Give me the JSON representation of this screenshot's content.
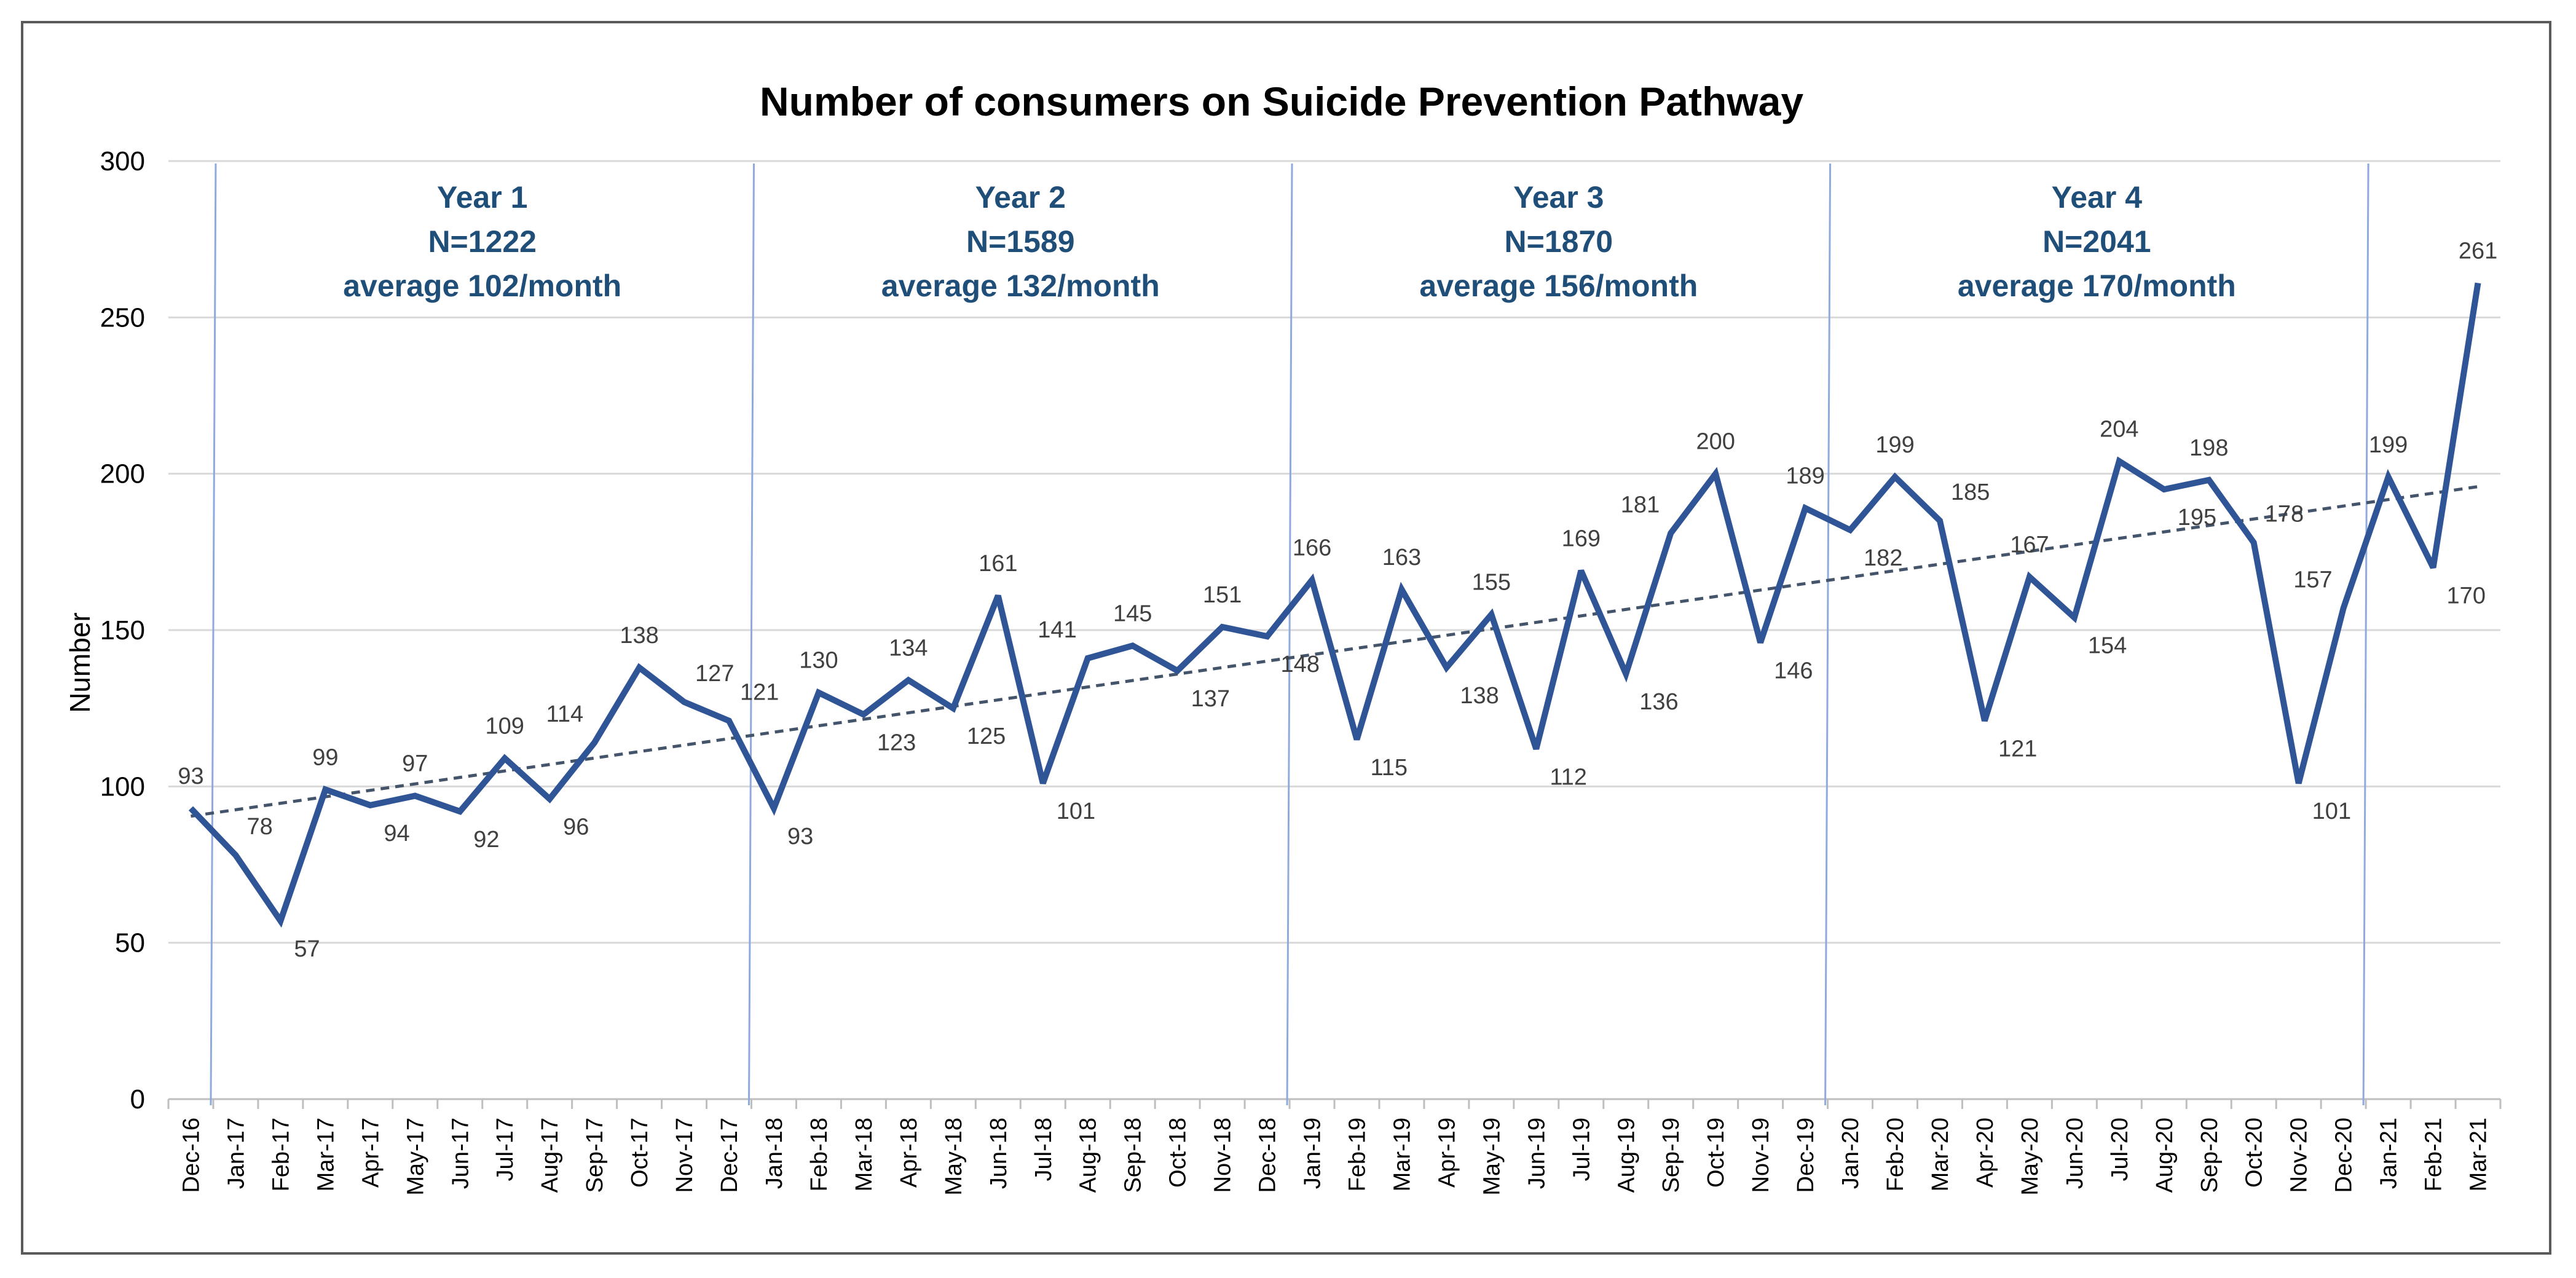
{
  "chart_data": {
    "type": "line",
    "title": "Number of consumers on Suicide Prevention Pathway",
    "xlabel": "",
    "ylabel": "Number",
    "ylim": [
      0,
      300
    ],
    "yticks": [
      "0",
      "50",
      "100",
      "150",
      "200",
      "250",
      "300"
    ],
    "grid": true,
    "categories": [
      "Dec-16",
      "Jan-17",
      "Feb-17",
      "Mar-17",
      "Apr-17",
      "May-17",
      "Jun-17",
      "Jul-17",
      "Aug-17",
      "Sep-17",
      "Oct-17",
      "Nov-17",
      "Dec-17",
      "Jan-18",
      "Feb-18",
      "Mar-18",
      "Apr-18",
      "May-18",
      "Jun-18",
      "Jul-18",
      "Aug-18",
      "Sep-18",
      "Oct-18",
      "Nov-18",
      "Dec-18",
      "Jan-19",
      "Feb-19",
      "Mar-19",
      "Apr-19",
      "May-19",
      "Jun-19",
      "Jul-19",
      "Aug-19",
      "Sep-19",
      "Oct-19",
      "Nov-19",
      "Dec-19",
      "Jan-20",
      "Feb-20",
      "Mar-20",
      "Apr-20",
      "May-20",
      "Jun-20",
      "Jul-20",
      "Aug-20",
      "Sep-20",
      "Oct-20",
      "Nov-20",
      "Dec-20",
      "Jan-21",
      "Feb-21",
      "Mar-21"
    ],
    "series": [
      {
        "name": "Number",
        "color": "#2f5597",
        "values": [
          93,
          78,
          57,
          99,
          94,
          97,
          92,
          109,
          96,
          114,
          138,
          127,
          121,
          93,
          130,
          123,
          134,
          125,
          161,
          101,
          141,
          145,
          137,
          151,
          148,
          166,
          115,
          163,
          138,
          155,
          112,
          169,
          136,
          181,
          200,
          146,
          189,
          182,
          199,
          185,
          121,
          167,
          154,
          204,
          195,
          198,
          178,
          101,
          157,
          199,
          170,
          261
        ],
        "labels": [
          "93",
          "78",
          "57",
          "99",
          "94",
          "97",
          "92",
          "109",
          "96",
          "114",
          "138",
          "127",
          "121",
          "93",
          "130",
          "123",
          "134",
          "125",
          "161",
          "101",
          "141",
          "145",
          "137",
          "151",
          "148",
          "166",
          "115",
          "163",
          "138",
          "155",
          "112",
          "169",
          "136",
          "181",
          "200",
          "146",
          "189",
          "182",
          "199",
          "185",
          "121",
          "167",
          "154",
          "204",
          "195",
          "198",
          "178",
          "101",
          "157",
          "199",
          "170",
          "261"
        ]
      }
    ],
    "trendline": {
      "type": "linear",
      "style": "dashed",
      "color": "#44546a"
    },
    "year_dividers_after_index": [
      0,
      12,
      24,
      36,
      48
    ],
    "year_annotations": [
      {
        "line1": "Year 1",
        "line2": "N=1222",
        "line3": "average 102/month"
      },
      {
        "line1": "Year 2",
        "line2": "N=1589",
        "line3": "average 132/month"
      },
      {
        "line1": "Year 3",
        "line2": "N=1870",
        "line3": "average 156/month"
      },
      {
        "line1": "Year 4",
        "line2": "N=2041",
        "line3": "average 170/month"
      }
    ],
    "colors": {
      "line": "#2f5597",
      "divider": "#8faadc",
      "grid": "#d9d9d9",
      "annotation": "#1f4e79",
      "trend": "#44546a"
    }
  }
}
